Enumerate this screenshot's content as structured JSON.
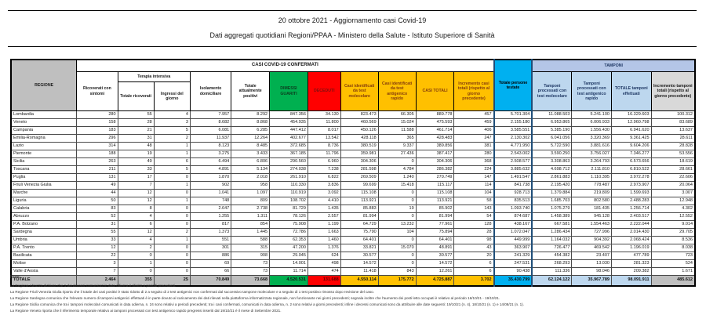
{
  "title": {
    "line1": "20 ottobre 2021 - Aggiornamento casi Covid-19",
    "line2": "Dati aggregati quotidiani Regioni/PPAA - Ministero della Salute - Istituto Superiore di Sanità"
  },
  "colors": {
    "green": "#00B050",
    "red": "#FF0000",
    "yellow": "#FFC000",
    "cyan": "#00B0F0",
    "light_blue": "#BDD7EE",
    "grey": "#BFBFBF"
  },
  "table": {
    "headers": {
      "regione": "REGIONE",
      "casi": "CASI COVID-19 CONFERMATI",
      "tamponi": "TAMPONI",
      "ricoverati": "Ricoverati con sintomi",
      "ti": "Terapia intensiva",
      "ti_tot": "Totale ricoverati",
      "ti_ingr": "Ingressi del giorno",
      "isolamento": "Isolamento domiciliare",
      "positivi": "Totale attualmente positivi",
      "guariti": "DIMESSI GUARITI",
      "deceduti": "DECEDUTI",
      "molecolare": "Casi identificati da test molecolare",
      "antigenico": "Casi identificati da test antigenico rapido",
      "casi_totali": "CASI TOTALI",
      "incr_casi": "Incremento casi totali (rispetto al giorno precedente)",
      "testate": "Totale persone testate",
      "tamp_mol": "Tamponi processati con test molecolare",
      "tamp_ant": "Tamponi processati con test antigenico rapido",
      "tamp_tot": "TOTALE tamponi effettuati",
      "incr_tamponi": "Incremento tamponi totali (rispetto al giorno precedente)"
    },
    "rows": [
      [
        "Lombardia",
        "280",
        "55",
        "4",
        "7.957",
        "8.292",
        "847.356",
        "34.130",
        "823.473",
        "66.305",
        "889.778",
        "457",
        "5.701.304",
        "11.088.503",
        "5.241.100",
        "16.329.603",
        "100.312"
      ],
      [
        "Veneto",
        "158",
        "28",
        "3",
        "8.682",
        "8.868",
        "454.935",
        "11.800",
        "460.569",
        "15.024",
        "475.593",
        "459",
        "2.155.180",
        "6.953.865",
        "6.006.933",
        "12.960.798",
        "83.689"
      ],
      [
        "Campania",
        "183",
        "21",
        "5",
        "6.081",
        "6.285",
        "447.412",
        "8.017",
        "450.126",
        "11.588",
        "461.714",
        "406",
        "3.585.551",
        "5.385.190",
        "1.556.430",
        "6.941.620",
        "13.637"
      ],
      [
        "Emilia-Romagna",
        "296",
        "31",
        "2",
        "11.937",
        "12.264",
        "402.677",
        "13.542",
        "428.118",
        "365",
        "428.483",
        "247",
        "2.130.302",
        "6.041.056",
        "3.320.369",
        "9.361.425",
        "28.611"
      ],
      [
        "Lazio",
        "314",
        "48",
        "1",
        "8.123",
        "8.485",
        "372.685",
        "8.736",
        "380.519",
        "9.337",
        "389.856",
        "381",
        "4.771.950",
        "5.722.590",
        "3.881.616",
        "9.604.206",
        "28.828"
      ],
      [
        "Piemonte",
        "188",
        "19",
        "1",
        "3.275",
        "3.433",
        "367.185",
        "11.796",
        "359.981",
        "27.436",
        "387.417",
        "280",
        "2.543.002",
        "3.590.250",
        "3.756.027",
        "7.346.277",
        "53.556"
      ],
      [
        "Sicilia",
        "263",
        "49",
        "6",
        "6.494",
        "6.806",
        "290.560",
        "6.960",
        "304.306",
        "0",
        "304.306",
        "368",
        "2.508.577",
        "3.308.863",
        "3.264.793",
        "6.573.656",
        "18.619"
      ],
      [
        "Toscana",
        "211",
        "33",
        "5",
        "4.891",
        "5.134",
        "274.038",
        "7.238",
        "281.598",
        "4.784",
        "286.382",
        "224",
        "3.885.632",
        "4.698.712",
        "2.111.810",
        "6.810.522",
        "28.661"
      ],
      [
        "Puglia",
        "131",
        "17",
        "0",
        "1.870",
        "2.018",
        "261.910",
        "6.822",
        "269.509",
        "1.240",
        "270.749",
        "147",
        "1.491.547",
        "2.861.883",
        "1.110.395",
        "3.972.278",
        "22.606"
      ],
      [
        "Friuli Venezia Giulia",
        "49",
        "7",
        "1",
        "902",
        "958",
        "110.330",
        "3.836",
        "99.699",
        "15.418",
        "115.117",
        "114",
        "841.738",
        "2.195.420",
        "778.487",
        "2.973.907",
        "20.064"
      ],
      [
        "Marche",
        "44",
        "12",
        "0",
        "1.041",
        "1.097",
        "110.919",
        "3.092",
        "115.108",
        "0",
        "115.108",
        "104",
        "928.713",
        "1.379.884",
        "219.809",
        "1.599.693",
        "3.007"
      ],
      [
        "Liguria",
        "50",
        "12",
        "1",
        "748",
        "809",
        "108.702",
        "4.410",
        "113.921",
        "0",
        "113.921",
        "58",
        "835.513",
        "1.685.703",
        "802.580",
        "2.488.283",
        "12.948"
      ],
      [
        "Calabria",
        "83",
        "8",
        "0",
        "2.647",
        "2.738",
        "81.729",
        "1.435",
        "85.883",
        "19",
        "85.902",
        "143",
        "1.093.740",
        "1.075.279",
        "181.435",
        "1.256.714",
        "4.302"
      ],
      [
        "Abruzzo",
        "52",
        "4",
        "0",
        "1.255",
        "1.311",
        "78.126",
        "2.557",
        "81.994",
        "0",
        "81.994",
        "54",
        "874.687",
        "1.458.389",
        "945.128",
        "2.403.517",
        "12.552"
      ],
      [
        "P.A. Bolzano",
        "31",
        "6",
        "0",
        "817",
        "854",
        "75.908",
        "1.199",
        "64.729",
        "13.232",
        "77.961",
        "128",
        "438.167",
        "667.581",
        "1.554.463",
        "2.222.044",
        "9.014"
      ],
      [
        "Sardegna",
        "55",
        "12",
        "2",
        "1.373",
        "1.445",
        "72.786",
        "1.663",
        "75.790",
        "104",
        "75.894",
        "28",
        "1.072.047",
        "1.286.434",
        "727.996",
        "2.014.430",
        "29.705"
      ],
      [
        "Umbria",
        "33",
        "4",
        "1",
        "551",
        "588",
        "62.353",
        "1.460",
        "64.401",
        "0",
        "64.401",
        "98",
        "449.999",
        "1.164.032",
        "904.392",
        "2.068.424",
        "8.536"
      ],
      [
        "P.A. Trento",
        "12",
        "2",
        "0",
        "301",
        "315",
        "47.200",
        "1.376",
        "33.821",
        "15.070",
        "48.891",
        "43",
        "363.907",
        "726.477",
        "469.542",
        "1.196.019",
        "8.038"
      ],
      [
        "Basilicata",
        "22",
        "0",
        "0",
        "886",
        "908",
        "29.045",
        "624",
        "30.577",
        "0",
        "30.577",
        "20",
        "241.329",
        "454.382",
        "23.407",
        "477.789",
        "723"
      ],
      [
        "Molise",
        "3",
        "1",
        "0",
        "69",
        "73",
        "14.001",
        "498",
        "14.572",
        "0",
        "14.572",
        "6",
        "247.531",
        "268.293",
        "13.030",
        "281.323",
        "524"
      ],
      [
        "Valle d'Aosta",
        "7",
        "0",
        "0",
        "66",
        "73",
        "11.714",
        "474",
        "11.418",
        "843",
        "12.261",
        "6",
        "90.438",
        "111.336",
        "98.046",
        "209.382",
        "1.671"
      ]
    ],
    "total": [
      "TOTALE",
      "2.464",
      "355",
      "25",
      "70.849",
      "73.668",
      "4.520.531",
      "131.688",
      "4.550.114",
      "175.772",
      "4.725.887",
      "3.702",
      "35.430.799",
      "62.124.122",
      "35.967.789",
      "98.091.911",
      "485.612"
    ]
  },
  "notes": {
    "label": "Note:",
    "items": [
      "La Regione Abruzzo dichiara che 1 dei decessi comunicati in data odierna è riferito a periodi precedenti.",
      "La Regione Friuli Venezia Giulia riporta che il totale dei casi positivi è stato ridotto di 2 a seguito di 2 test antigenici non confermati dal successivo tampone molecolare e a seguito di 1 test positivo rimosso dopo revisione del caso.",
      "La Regione Sardegna comunica che l'elevato numero di tamponi antigenici effettuati è in parte dovuto al caricamento dei dati rilevati nella piattaforma informatizzata regionale, non funzionante nei giorni precedenti; segnala inoltre che l'aumento dei posti letto occupati è relativo al periodo 16/10/21 - 19/10/21.",
      "La Regione Sicilia comunica che tra i tamponi molecolari comunicati in data odierna, n. 24 sono relativi a periodi precedenti; tra i casi confermati, comunicati in data odierna, n. 2 sono relativi a giorni precedenti; infine i decessi comunicati sono da attribuire alle date seguenti: 19/10/21 (n. 4), 18/10/21 (n. 1) e 14/08/21 (n. 1).",
      "La Regione Veneto riporta che il riferimento temporale relativo ai tamponi processati con test antigenico rapido pregressi inseriti dal 19/10/21 è il mese di Settembre 2021."
    ]
  }
}
